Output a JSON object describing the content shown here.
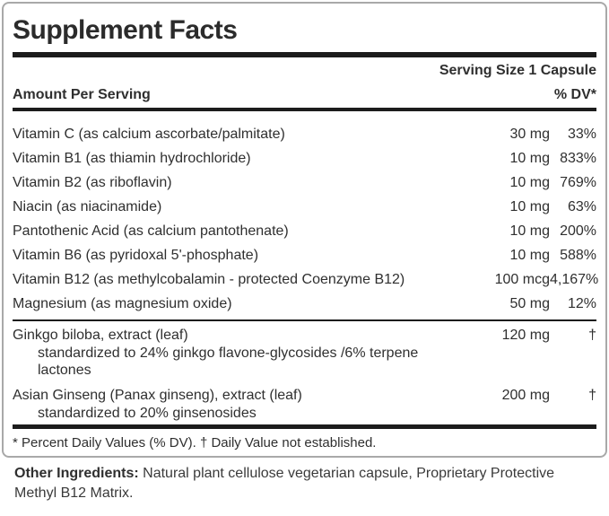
{
  "panel": {
    "title": "Supplement Facts",
    "serving_size": "Serving Size 1 Capsule",
    "amount_per_serving_label": "Amount Per Serving",
    "dv_header": "% DV*",
    "rows": [
      {
        "name": "Vitamin C (as calcium ascorbate/palmitate)",
        "amount": "30 mg",
        "dv": "33%"
      },
      {
        "name": "Vitamin B1 (as thiamin hydrochloride)",
        "amount": "10 mg",
        "dv": "833%"
      },
      {
        "name": "Vitamin B2 (as riboflavin)",
        "amount": "10 mg",
        "dv": "769%"
      },
      {
        "name": "Niacin (as niacinamide)",
        "amount": "10 mg",
        "dv": "63%"
      },
      {
        "name": "Pantothenic Acid (as calcium pantothenate)",
        "amount": "10 mg",
        "dv": "200%"
      },
      {
        "name": "Vitamin B6 (as pyridoxal 5'-phosphate)",
        "amount": "10 mg",
        "dv": "588%"
      },
      {
        "name": "Vitamin B12 (as methylcobalamin - protected Coenzyme B12)",
        "amount": "100 mcg",
        "dv": "4,167%"
      },
      {
        "name": "Magnesium (as magnesium oxide)",
        "amount": "50 mg",
        "dv": "12%"
      }
    ],
    "botanicals": [
      {
        "name": "Ginkgo biloba, extract (leaf)",
        "amount": "120 mg",
        "dv": "†",
        "note": "standardized to 24% ginkgo flavone-glycosides /6% terpene lactones"
      },
      {
        "name": "Asian Ginseng (Panax ginseng), extract (leaf)",
        "amount": "200 mg",
        "dv": "†",
        "note": "standardized to 20% ginsenosides"
      }
    ],
    "footnote": "* Percent Daily Values (% DV). † Daily Value not established."
  },
  "other_ingredients": {
    "label": "Other Ingredients:",
    "text": "Natural plant cellulose vegetarian capsule, Proprietary Protective Methyl B12 Matrix."
  },
  "colors": {
    "text": "#2f2f2f",
    "rule": "#1c1c1c",
    "panel_border": "#a9a9a9",
    "background": "#ffffff"
  }
}
